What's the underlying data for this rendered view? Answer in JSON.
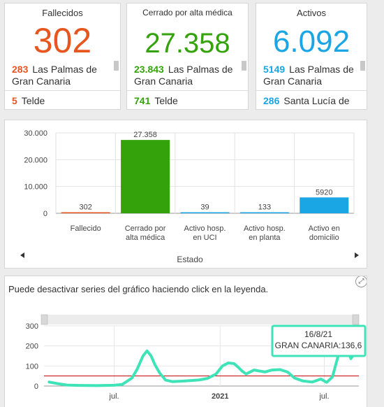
{
  "kpis": [
    {
      "title": "Fallecidos",
      "value": "302",
      "color": "#e8561f",
      "rows": [
        {
          "num": "283",
          "name": "Las Palmas de Gran Canaria"
        },
        {
          "num": "5",
          "name": "Telde"
        }
      ]
    },
    {
      "title": "Cerrado por alta médica",
      "value": "27.358",
      "color": "#34a20a",
      "rows": [
        {
          "num": "23.843",
          "name": "Las Palmas de Gran Canaria"
        },
        {
          "num": "741",
          "name": "Telde"
        }
      ]
    },
    {
      "title": "Activos",
      "value": "6.092",
      "color": "#1aa5e4",
      "rows": [
        {
          "num": "5149",
          "name": "Las Palmas de Gran Canaria"
        },
        {
          "num": "286",
          "name": "Santa Lucía de Tirajana"
        }
      ]
    }
  ],
  "bar_panel": {
    "axis_title": "Estado",
    "prev_icon": "triangle-left-icon",
    "next_icon": "triangle-right-icon"
  },
  "line_panel": {
    "note": "Puede desactivar series del gráfico haciendo click en la leyenda.",
    "tooltip_date": "16/8/21",
    "tooltip_text": "GRAN CANARIA:136,6",
    "expand_icon": "expand-icon"
  },
  "chart_data": [
    {
      "type": "bar",
      "categories": [
        "Fallecido",
        "Cerrado por alta médica",
        "Activo hosp. en UCI",
        "Activo hosp. en planta",
        "Activo en domicilio"
      ],
      "values": [
        302,
        27358,
        39,
        133,
        5920
      ],
      "value_labels": [
        "302",
        "27.358",
        "39",
        "133",
        "5920"
      ],
      "colors": [
        "#e8561f",
        "#34a20a",
        "#1aa5e4",
        "#1aa5e4",
        "#1aa5e4"
      ],
      "ylim": [
        0,
        30000
      ],
      "yticks": [
        0,
        10000,
        20000,
        30000
      ],
      "ytick_labels": [
        "0",
        "10.000",
        "20.000",
        "30.000"
      ],
      "xlabel": "Estado",
      "grid": true
    },
    {
      "type": "line",
      "x_tick_labels": [
        "jul.",
        "2021",
        "jul."
      ],
      "ylim": [
        0,
        300
      ],
      "yticks": [
        0,
        100,
        200,
        300
      ],
      "threshold": 50,
      "threshold_color": "#c00000",
      "series": [
        {
          "name": "GRAN CANARIA",
          "color": "#3fe3b8",
          "x": [
            "2020-03-10",
            "2020-03-25",
            "2020-04-10",
            "2020-05-01",
            "2020-06-01",
            "2020-07-01",
            "2020-07-15",
            "2020-08-01",
            "2020-08-10",
            "2020-08-20",
            "2020-08-27",
            "2020-09-03",
            "2020-09-10",
            "2020-09-18",
            "2020-09-28",
            "2020-10-10",
            "2020-11-01",
            "2020-11-25",
            "2020-12-10",
            "2020-12-25",
            "2021-01-05",
            "2021-01-15",
            "2021-01-25",
            "2021-02-01",
            "2021-02-08",
            "2021-02-15",
            "2021-02-22",
            "2021-03-01",
            "2021-03-10",
            "2021-03-20",
            "2021-04-01",
            "2021-04-15",
            "2021-04-28",
            "2021-05-10",
            "2021-05-25",
            "2021-06-10",
            "2021-06-25",
            "2021-07-05",
            "2021-07-15",
            "2021-07-25",
            "2021-08-01",
            "2021-08-08",
            "2021-08-16"
          ],
          "y": [
            20,
            12,
            5,
            3,
            2,
            4,
            8,
            40,
            85,
            150,
            175,
            150,
            105,
            65,
            30,
            22,
            25,
            30,
            38,
            60,
            100,
            115,
            112,
            95,
            75,
            60,
            70,
            80,
            75,
            70,
            80,
            82,
            70,
            40,
            25,
            20,
            35,
            18,
            45,
            150,
            210,
            225,
            136.6
          ]
        }
      ]
    }
  ]
}
